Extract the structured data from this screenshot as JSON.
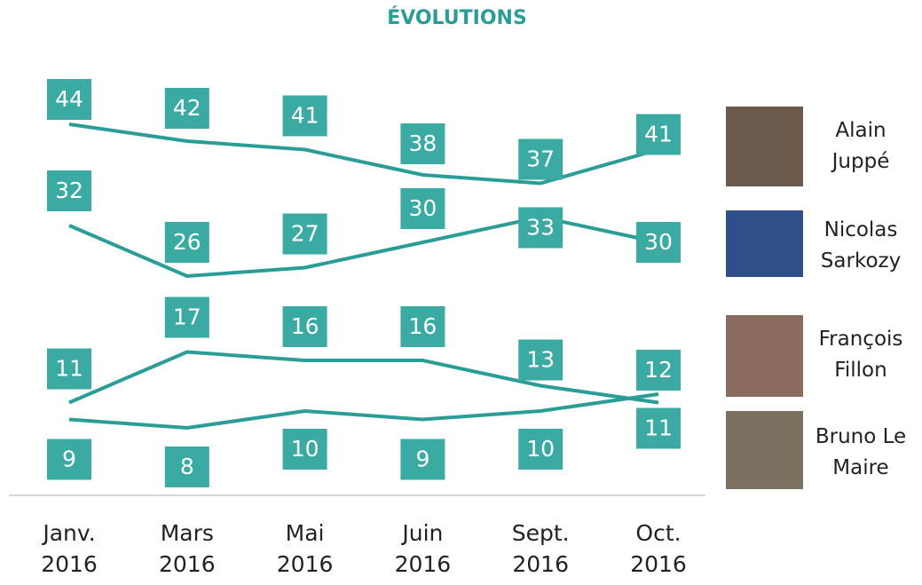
{
  "chart_data": {
    "type": "line",
    "title": "ÉVOLUTIONS",
    "categories": [
      "Janv. 2016",
      "Mars 2016",
      "Mai 2016",
      "Juin 2016",
      "Sept. 2016",
      "Oct. 2016"
    ],
    "series": [
      {
        "name": "Alain Juppé",
        "color": "#2a9d96",
        "values": [
          44,
          42,
          41,
          38,
          37,
          41
        ]
      },
      {
        "name": "Nicolas Sarkozy",
        "color": "#2a9d96",
        "values": [
          32,
          26,
          27,
          30,
          33,
          30
        ]
      },
      {
        "name": "François Fillon",
        "color": "#2a9d96",
        "values": [
          11,
          17,
          16,
          16,
          13,
          11
        ]
      },
      {
        "name": "Bruno Le Maire",
        "color": "#2a9d96",
        "values": [
          9,
          8,
          10,
          9,
          10,
          12
        ]
      }
    ],
    "ylim": [
      0,
      58
    ]
  }
}
